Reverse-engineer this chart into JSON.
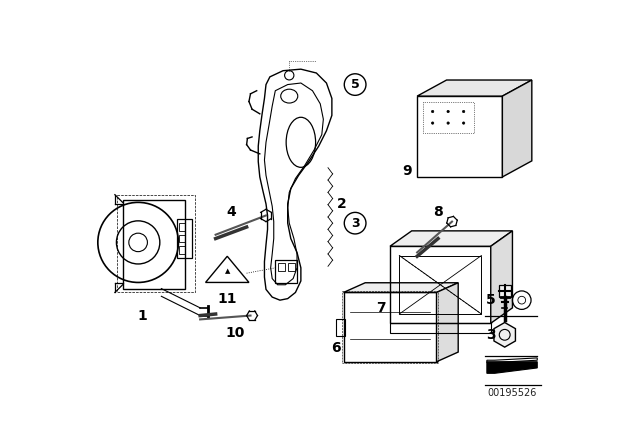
{
  "background_color": "#ffffff",
  "line_color": "#000000",
  "part_number": "00195526",
  "figsize": [
    6.4,
    4.48
  ],
  "dpi": 100
}
